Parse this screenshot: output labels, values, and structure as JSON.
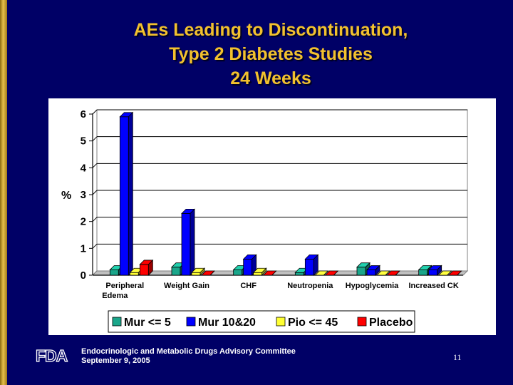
{
  "slide": {
    "title_lines": [
      "AEs Leading to Discontinuation,",
      "Type 2 Diabetes Studies",
      "24 Weeks"
    ],
    "footer_line1": "Endocrinologic and Metabolic Drugs Advisory Committee",
    "footer_line2": "September 9, 2005",
    "page_number": "11",
    "logo_text": "FDA"
  },
  "colors": {
    "background": "#000066",
    "title": "#f2c12e",
    "series": [
      "#1aa68a",
      "#0000ff",
      "#ffff33",
      "#ff0000"
    ]
  },
  "chart_data": {
    "type": "bar",
    "title": "",
    "xlabel": "",
    "ylabel": "%",
    "ylim": [
      0,
      6
    ],
    "yticks": [
      0,
      1,
      2,
      3,
      4,
      5,
      6
    ],
    "grid": true,
    "legend_position": "bottom",
    "categories": [
      [
        "Peripheral",
        "Edema"
      ],
      [
        "Weight Gain"
      ],
      [
        "CHF"
      ],
      [
        "Neutropenia"
      ],
      [
        "Hypoglycemia"
      ],
      [
        "Increased CK"
      ]
    ],
    "series": [
      {
        "name": "Mur <= 5",
        "values": [
          0.2,
          0.3,
          0.2,
          0.1,
          0.3,
          0.2
        ]
      },
      {
        "name": "Mur 10&20",
        "values": [
          5.9,
          2.3,
          0.6,
          0.6,
          0.2,
          0.2
        ]
      },
      {
        "name": "Pio <= 45",
        "values": [
          0.1,
          0.1,
          0.1,
          0.0,
          0.0,
          0.0
        ]
      },
      {
        "name": "Placebo",
        "values": [
          0.4,
          0.0,
          0.0,
          0.0,
          0.0,
          0.0
        ]
      }
    ]
  }
}
